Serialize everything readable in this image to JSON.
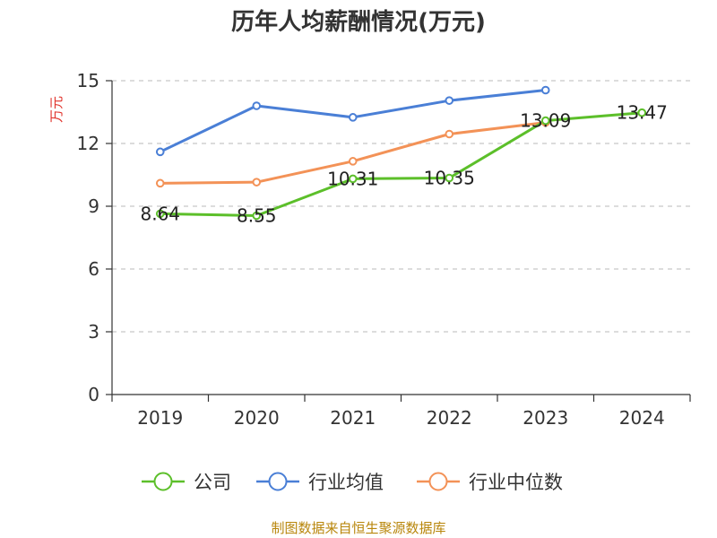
{
  "chart_data": {
    "type": "line",
    "title": "历年人均薪酬情况(万元)",
    "ylabel": "万元",
    "xlabel": "",
    "ylim": [
      0,
      15
    ],
    "yticks": [
      0,
      3,
      6,
      9,
      12,
      15
    ],
    "grid": "horizontal-dashed",
    "legend_position": "bottom",
    "categories": [
      "2019",
      "2020",
      "2021",
      "2022",
      "2023",
      "2024"
    ],
    "series": [
      {
        "name": "公司",
        "color": "#5cbf2a",
        "values": [
          8.64,
          8.55,
          10.31,
          10.35,
          13.09,
          13.47
        ],
        "labels": [
          "8.64",
          "8.55",
          "10.31",
          "10.35",
          "13.09",
          "13.47"
        ]
      },
      {
        "name": "行业均值",
        "color": "#4a7fd6",
        "values": [
          11.6,
          13.8,
          13.25,
          14.05,
          14.55,
          null
        ]
      },
      {
        "name": "行业中位数",
        "color": "#f39257",
        "values": [
          10.1,
          10.15,
          11.15,
          12.45,
          13.0,
          null
        ]
      }
    ],
    "source": "制图数据来自恒生聚源数据库"
  }
}
